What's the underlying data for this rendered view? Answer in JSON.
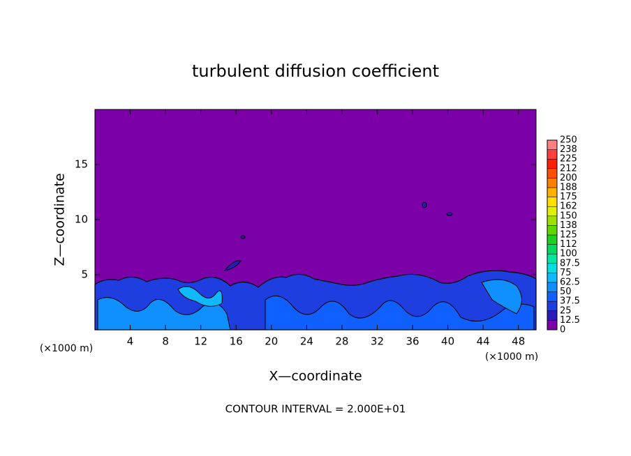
{
  "chart_data": {
    "type": "contour",
    "title": "turbulent diffusion coefficient",
    "xlabel": "X—coordinate",
    "ylabel": "Z—coordinate",
    "xunit_left": "(×1000 m)",
    "xunit_right": "(×1000 m)",
    "annotation": "CONTOUR INTERVAL = 2.000E+01",
    "background_color": "#7b00a8",
    "xlim": [
      0,
      50
    ],
    "xticks": [
      4,
      8,
      12,
      16,
      20,
      24,
      28,
      32,
      36,
      40,
      44,
      48
    ],
    "ylim": [
      0,
      20
    ],
    "yticks": [
      5,
      10,
      15
    ],
    "colorbar": {
      "ticks": [
        0,
        12.5,
        25,
        37.5,
        50,
        62.5,
        75,
        87.5,
        100,
        {
          "value": 112.5,
          "label": "112"
        },
        125,
        {
          "value": 137.5,
          "label": "138"
        },
        150,
        {
          "value": 162.5,
          "label": "162"
        },
        175,
        {
          "value": 187.5,
          "label": "188"
        },
        200,
        {
          "value": 212.5,
          "label": "212"
        },
        225,
        {
          "value": 237.5,
          "label": "238"
        },
        250
      ],
      "colors": [
        "#7b00a8",
        "#2a1ab8",
        "#1f3ee0",
        "#1060ff",
        "#1090ff",
        "#10b8ff",
        "#00e0e0",
        "#00e8a0",
        "#00d860",
        "#20d020",
        "#60d800",
        "#a0e000",
        "#e0f000",
        "#ffe000",
        "#ffb000",
        "#ff8000",
        "#ff5000",
        "#ff2000",
        "#ff4040",
        "#ff8080"
      ]
    }
  }
}
